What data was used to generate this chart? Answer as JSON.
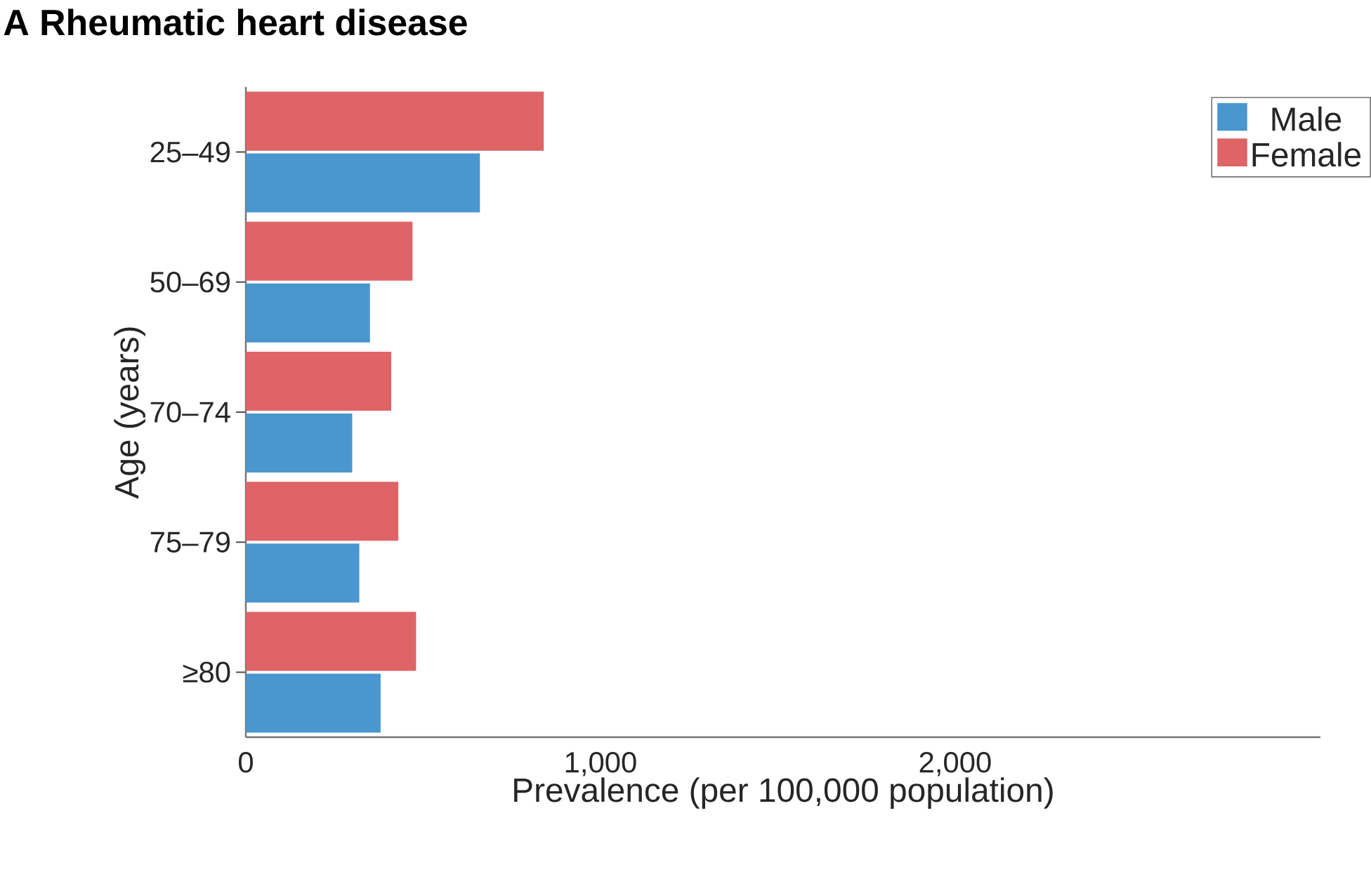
{
  "chart_data": {
    "type": "bar",
    "orientation": "horizontal",
    "title": "A Rheumatic heart disease",
    "xlabel": "Prevalence (per 100,000 population)",
    "ylabel": "Age (years)",
    "categories": [
      "25–49",
      "50–69",
      "70–74",
      "75–79",
      "≥80"
    ],
    "series": [
      {
        "name": "Male",
        "color": "#4a96cf",
        "values": [
          660,
          350,
          300,
          320,
          380
        ]
      },
      {
        "name": "Female",
        "color": "#de6466",
        "values": [
          840,
          470,
          410,
          430,
          480
        ]
      }
    ],
    "xlim": [
      0,
      3030
    ],
    "xticks": [
      0,
      {
        "value": 1000,
        "label": "1,000"
      },
      {
        "value": 2000,
        "label": "2,000"
      }
    ],
    "legend": "top right",
    "grid": false
  }
}
